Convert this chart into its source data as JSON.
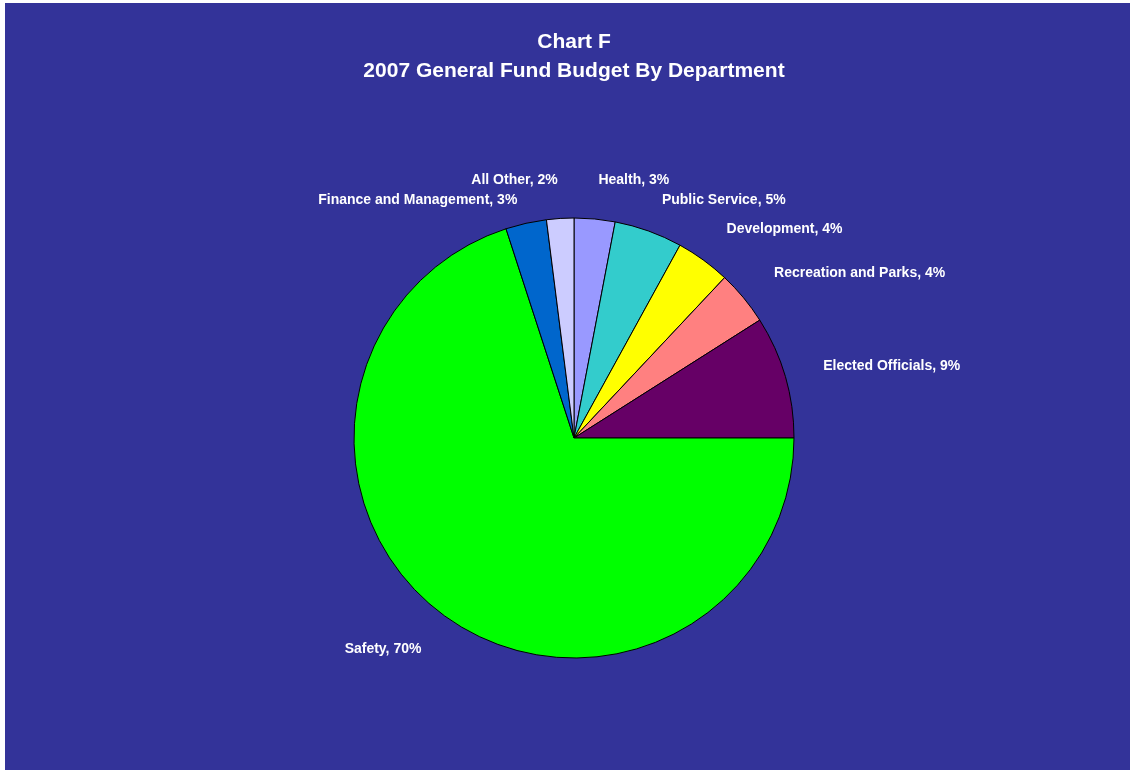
{
  "chart_data": {
    "type": "pie",
    "title": "Chart F",
    "subtitle": "2007 General Fund Budget By Department",
    "categories": [
      "Health",
      "Public Service",
      "Development",
      "Recreation and Parks",
      "Elected Officials",
      "Safety",
      "Finance and Management",
      "All Other"
    ],
    "values": [
      3,
      5,
      4,
      4,
      9,
      70,
      3,
      2
    ],
    "value_labels": [
      "3%",
      "5%",
      "4%",
      "4%",
      "9%",
      "70%",
      "3%",
      "2%"
    ],
    "colors": [
      "#9999ff",
      "#33cccc",
      "#ffff00",
      "#ff8080",
      "#660066",
      "#00ff00",
      "#0066cc",
      "#ccccff"
    ]
  }
}
